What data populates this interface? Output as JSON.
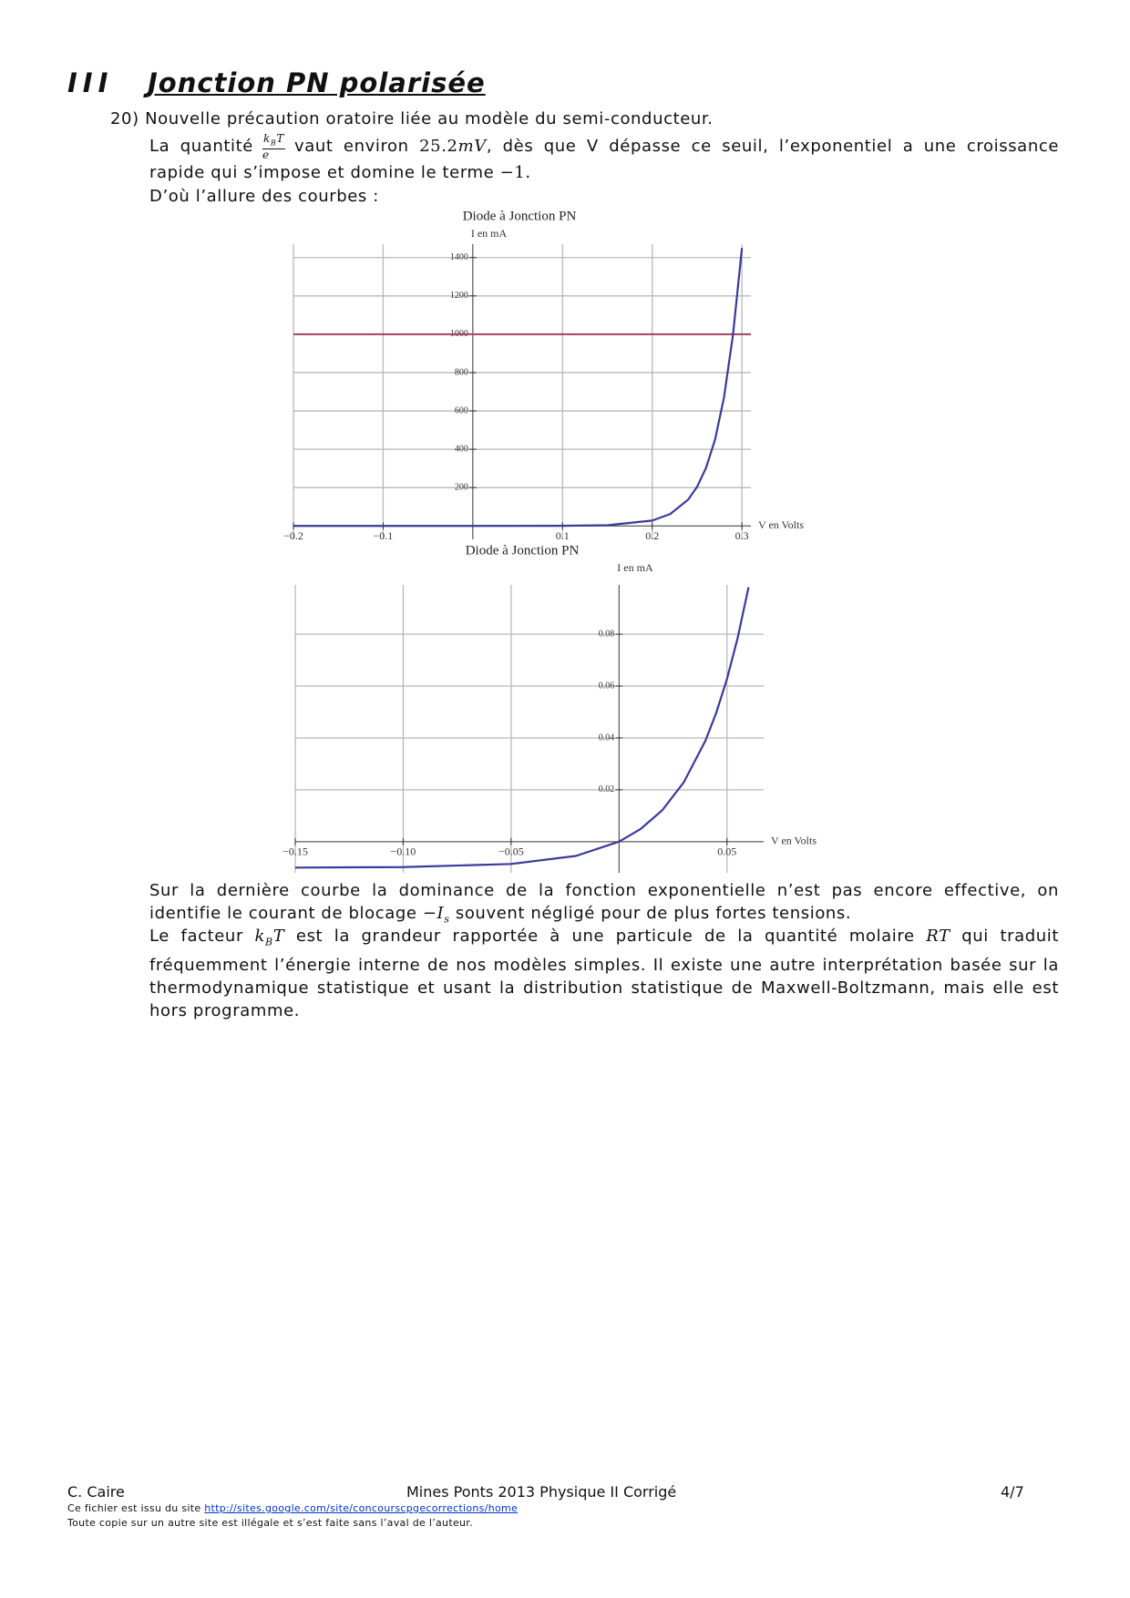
{
  "header": {
    "section_number": "III",
    "title": "Jonction PN polarisée"
  },
  "q20": {
    "number": "20)",
    "heading": "Nouvelle précaution oratoire liée au modèle du semi-conducteur.",
    "p1_a": "La quantité",
    "frac_k": "k",
    "frac_sub": "B",
    "frac_T": "T",
    "frac_den": "e",
    "p1_b": "vaut environ",
    "p1_val": "25.2",
    "p1_unit": "mV",
    "p1_c": ", dès que V dépasse ce seuil, l’exponentiel  a une croissance rapide qui s’impose et domine le terme",
    "p1_minus": "−1",
    "p1_d": ".",
    "p2": "D’où l’allure des courbes :"
  },
  "chart_data": [
    {
      "type": "line",
      "title": "Diode à Jonction PN",
      "ylabel": "I en mA",
      "xlabel": "V en Volts",
      "x": [
        -0.2,
        -0.1,
        0,
        0.1,
        0.15,
        0.2,
        0.22,
        0.24,
        0.25,
        0.26,
        0.27,
        0.28,
        0.29,
        0.3
      ],
      "values": [
        -0.01,
        -0.01,
        0,
        0.52,
        3.8,
        28,
        62,
        137,
        204,
        303,
        450,
        670,
        996,
        1450
      ],
      "color": "#3a3a9c",
      "hline": 1000,
      "hline_color": "#a3405e",
      "xlim": [
        -0.2,
        0.31
      ],
      "ylim": [
        -70,
        1470
      ],
      "xticks": [
        {
          "value": -0.2,
          "label": "−0.2"
        },
        {
          "value": -0.1,
          "label": "−0.1"
        },
        0.1,
        0.2,
        0.3
      ],
      "yticks": [
        200,
        400,
        600,
        800,
        1000,
        1200,
        1400
      ],
      "grid": true
    },
    {
      "type": "line",
      "title": "Diode à Jonction PN",
      "ylabel": "I en mA",
      "xlabel": "V en Volts",
      "x": [
        -0.15,
        -0.1,
        -0.05,
        -0.02,
        0,
        0.01,
        0.02,
        0.03,
        0.04,
        0.045,
        0.05,
        0.055,
        0.06
      ],
      "values": [
        -0.01,
        -0.0098,
        -0.0086,
        -0.0055,
        0,
        0.0049,
        0.0121,
        0.0229,
        0.0389,
        0.0496,
        0.0627,
        0.0787,
        0.0981
      ],
      "color": "#3a3a9c",
      "xlim": [
        -0.15,
        0.067
      ],
      "ylim": [
        -0.012,
        0.099
      ],
      "xticks": [
        {
          "value": -0.15,
          "label": "−0.15"
        },
        {
          "value": -0.1,
          "label": "−0.10"
        },
        {
          "value": -0.05,
          "label": "−0.05"
        },
        0.05
      ],
      "yticks": [
        0.02,
        0.04,
        0.06,
        0.08
      ],
      "grid": true
    }
  ],
  "after": {
    "p3_a": "Sur la dernière courbe la dominance de la fonction exponentielle n’est pas encore effective, on identifie le courant de blocage",
    "p3_I": "−I",
    "p3_sub": "s",
    "p3_b": "souvent négligé pour de plus fortes tensions.",
    "p4_a": "Le facteur",
    "p4_k": "k",
    "p4_sub": "B",
    "p4_T": "T",
    "p4_b": "est la grandeur rapportée à une particule de la quantité molaire",
    "p4_RT": "RT",
    "p4_c": "qui traduit fréquemment l’énergie interne de nos modèles simples. Il existe une autre interprétation basée sur la thermodynamique statistique et usant la distribution statistique de Maxwell-Boltzmann, mais elle est hors programme."
  },
  "footer": {
    "author": "C. Caire",
    "course": "Mines Ponts 2013 Physique II Corrigé",
    "page": "4/7",
    "source_a": "Ce fichier est issu du site",
    "source_link": "http://sites.google.com/site/concourscpgecorrections/home",
    "copyright": "Toute copie sur un autre site est illégale et s’est faite sans l’aval de l’auteur."
  }
}
